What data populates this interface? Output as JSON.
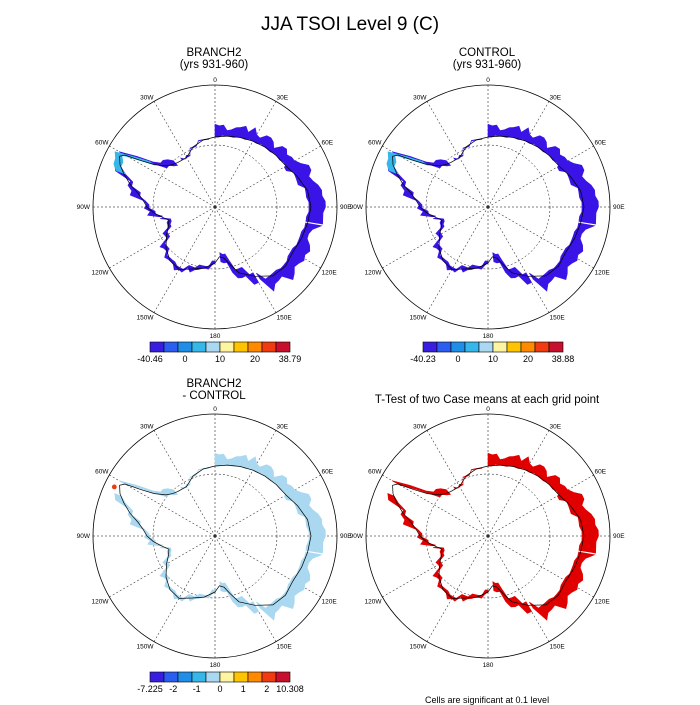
{
  "title": "JJA TSOI Level 9 (C)",
  "panels": {
    "p1": {
      "title_line1": "BRANCH2",
      "title_line2": "(yrs 931-960)"
    },
    "p2": {
      "title_line1": "CONTROL",
      "title_line2": "(yrs 931-960)"
    },
    "p3": {
      "title_line1": "BRANCH2",
      "title_line2": "- CONTROL"
    },
    "p4": {
      "title_line1": "T-Test of two Case means at each grid point"
    }
  },
  "map_labels": {
    "top": "0",
    "bottom": "180",
    "left": "90W",
    "right": "90E",
    "w30": "30W",
    "e30": "30E",
    "w60": "60W",
    "e60": "60E",
    "w120": "120W",
    "e120": "120E",
    "w150": "150W",
    "e150": "150E"
  },
  "colorbars": {
    "cb1": {
      "labels": [
        "-40.46",
        "0",
        "10",
        "20",
        "38.79"
      ]
    },
    "cb2": {
      "labels": [
        "-40.23",
        "0",
        "10",
        "20",
        "38.88"
      ]
    },
    "cb3": {
      "labels": [
        "-7.225",
        "-2",
        "-1",
        "0",
        "1",
        "2",
        "10.308"
      ]
    }
  },
  "colors": {
    "palette": [
      "#3a1ee0",
      "#2b5ef0",
      "#1e8ee6",
      "#37b6ea",
      "#a9d8f0",
      "#fff4a0",
      "#ffc400",
      "#ff8a00",
      "#f03a10",
      "#c8102e"
    ],
    "branch_fill": "#3a14e6",
    "diff_fill": "#a9d8f0",
    "ttest_fill": "#e00000"
  },
  "footnote": "Cells are significant at 0.1 level"
}
